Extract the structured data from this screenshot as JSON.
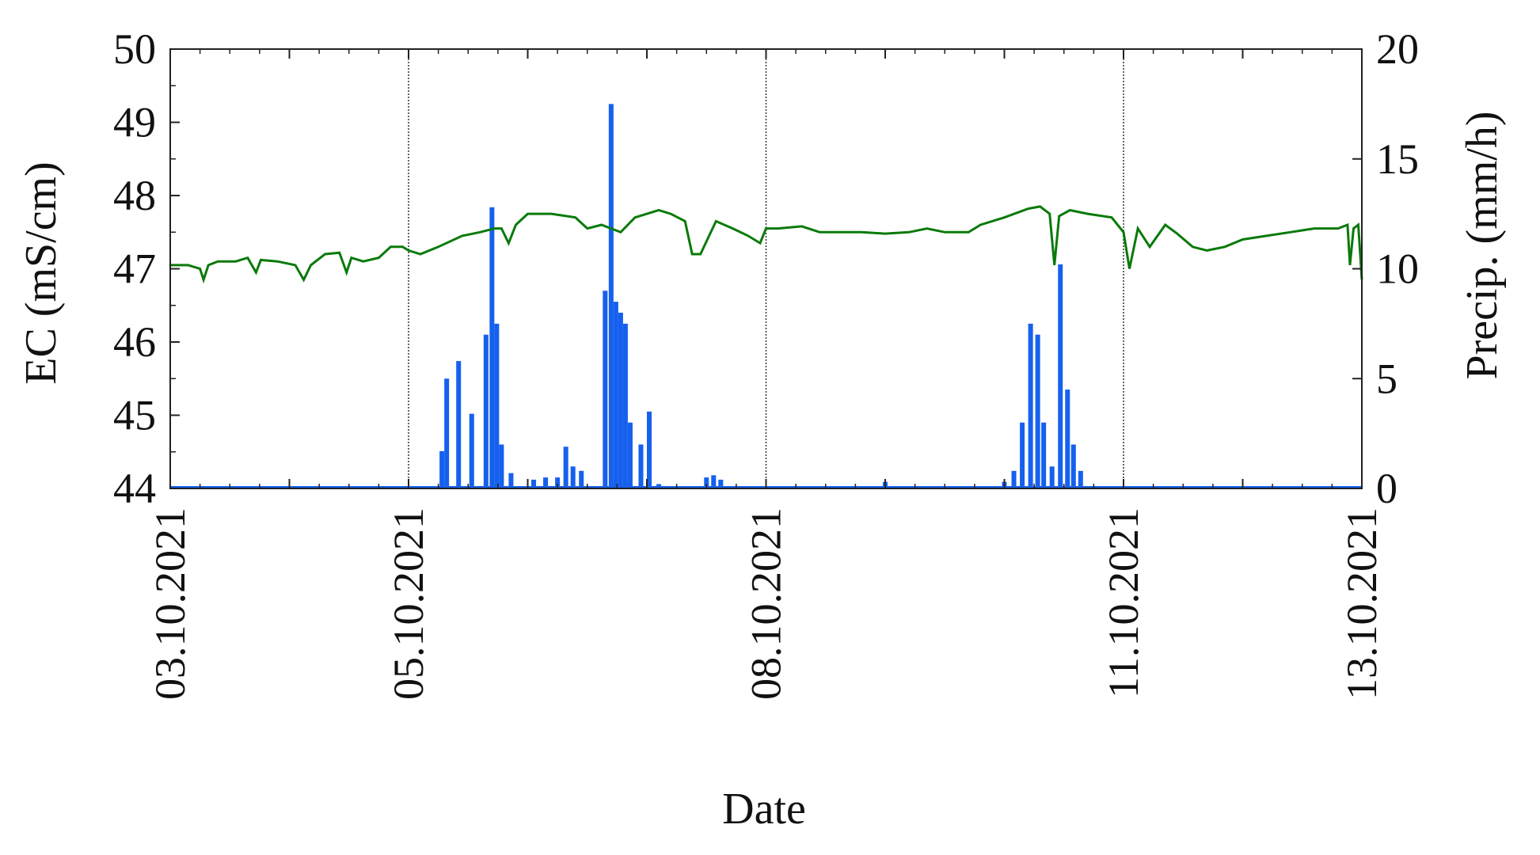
{
  "chart_data": {
    "type": "line",
    "xlabel": "Date",
    "ylabel_left": "EC (mS/cm)",
    "ylabel_right": "Precip. (mm/h)",
    "x_tick_labels": [
      "03.10.2021",
      "05.10.2021",
      "08.10.2021",
      "11.10.2021",
      "13.10.2021"
    ],
    "x_tick_positions_days": [
      0,
      2,
      5,
      8,
      10
    ],
    "x_range_days": [
      0,
      10
    ],
    "y_left_ticks": [
      "44",
      "45",
      "46",
      "47",
      "48",
      "49",
      "50"
    ],
    "y_left_range": [
      44,
      50
    ],
    "y_right_ticks": [
      "0",
      "5",
      "10",
      "15",
      "20"
    ],
    "y_right_range": [
      0,
      20
    ],
    "vertical_dividers_days": [
      2,
      5,
      8
    ],
    "colors": {
      "ec_line": "#0a7a0a",
      "precip_bars": "#1660ee",
      "axes": "#222222",
      "divider": "#333333"
    },
    "series": [
      {
        "axis": "left",
        "type": "line",
        "points": [
          [
            0.0,
            47.05
          ],
          [
            0.15,
            47.05
          ],
          [
            0.25,
            47.0
          ],
          [
            0.28,
            46.85
          ],
          [
            0.32,
            47.05
          ],
          [
            0.4,
            47.1
          ],
          [
            0.55,
            47.1
          ],
          [
            0.65,
            47.15
          ],
          [
            0.72,
            46.95
          ],
          [
            0.76,
            47.12
          ],
          [
            0.9,
            47.1
          ],
          [
            1.05,
            47.05
          ],
          [
            1.12,
            46.85
          ],
          [
            1.18,
            47.05
          ],
          [
            1.3,
            47.2
          ],
          [
            1.42,
            47.22
          ],
          [
            1.48,
            46.95
          ],
          [
            1.52,
            47.15
          ],
          [
            1.62,
            47.1
          ],
          [
            1.75,
            47.15
          ],
          [
            1.85,
            47.3
          ],
          [
            1.95,
            47.3
          ],
          [
            2.0,
            47.25
          ],
          [
            2.1,
            47.2
          ],
          [
            2.25,
            47.3
          ],
          [
            2.45,
            47.45
          ],
          [
            2.6,
            47.5
          ],
          [
            2.72,
            47.55
          ],
          [
            2.78,
            47.55
          ],
          [
            2.84,
            47.35
          ],
          [
            2.9,
            47.6
          ],
          [
            3.0,
            47.75
          ],
          [
            3.2,
            47.75
          ],
          [
            3.4,
            47.7
          ],
          [
            3.5,
            47.55
          ],
          [
            3.62,
            47.6
          ],
          [
            3.78,
            47.5
          ],
          [
            3.9,
            47.7
          ],
          [
            4.1,
            47.8
          ],
          [
            4.2,
            47.75
          ],
          [
            4.32,
            47.65
          ],
          [
            4.38,
            47.2
          ],
          [
            4.45,
            47.2
          ],
          [
            4.58,
            47.65
          ],
          [
            4.72,
            47.55
          ],
          [
            4.85,
            47.45
          ],
          [
            4.95,
            47.35
          ],
          [
            5.0,
            47.55
          ],
          [
            5.1,
            47.55
          ],
          [
            5.3,
            47.58
          ],
          [
            5.45,
            47.5
          ],
          [
            5.6,
            47.5
          ],
          [
            5.8,
            47.5
          ],
          [
            6.0,
            47.48
          ],
          [
            6.2,
            47.5
          ],
          [
            6.35,
            47.55
          ],
          [
            6.5,
            47.5
          ],
          [
            6.7,
            47.5
          ],
          [
            6.8,
            47.6
          ],
          [
            7.0,
            47.7
          ],
          [
            7.2,
            47.82
          ],
          [
            7.3,
            47.85
          ],
          [
            7.38,
            47.75
          ],
          [
            7.42,
            47.05
          ],
          [
            7.46,
            47.72
          ],
          [
            7.55,
            47.8
          ],
          [
            7.7,
            47.75
          ],
          [
            7.9,
            47.7
          ],
          [
            8.0,
            47.5
          ],
          [
            8.05,
            47.0
          ],
          [
            8.12,
            47.55
          ],
          [
            8.22,
            47.3
          ],
          [
            8.35,
            47.6
          ],
          [
            8.45,
            47.48
          ],
          [
            8.58,
            47.3
          ],
          [
            8.7,
            47.25
          ],
          [
            8.85,
            47.3
          ],
          [
            9.0,
            47.4
          ],
          [
            9.2,
            47.45
          ],
          [
            9.4,
            47.5
          ],
          [
            9.6,
            47.55
          ],
          [
            9.8,
            47.55
          ],
          [
            9.88,
            47.6
          ],
          [
            9.9,
            47.05
          ],
          [
            9.93,
            47.55
          ],
          [
            9.97,
            47.6
          ],
          [
            10.0,
            46.85
          ]
        ]
      },
      {
        "axis": "right",
        "type": "bar",
        "bar_width_days": 0.04,
        "bars": [
          [
            2.28,
            1.7
          ],
          [
            2.32,
            5.0
          ],
          [
            2.42,
            5.8
          ],
          [
            2.53,
            3.4
          ],
          [
            2.65,
            7.0
          ],
          [
            2.7,
            12.8
          ],
          [
            2.74,
            7.5
          ],
          [
            2.78,
            2.0
          ],
          [
            2.86,
            0.7
          ],
          [
            3.05,
            0.4
          ],
          [
            3.15,
            0.5
          ],
          [
            3.25,
            0.5
          ],
          [
            3.32,
            1.9
          ],
          [
            3.38,
            1.0
          ],
          [
            3.45,
            0.8
          ],
          [
            3.65,
            9.0
          ],
          [
            3.7,
            17.5
          ],
          [
            3.74,
            8.5
          ],
          [
            3.78,
            8.0
          ],
          [
            3.82,
            7.5
          ],
          [
            3.86,
            3.0
          ],
          [
            3.95,
            2.0
          ],
          [
            4.02,
            3.5
          ],
          [
            4.1,
            0.2
          ],
          [
            4.22,
            0.1
          ],
          [
            4.5,
            0.5
          ],
          [
            4.56,
            0.6
          ],
          [
            4.62,
            0.4
          ],
          [
            6.0,
            0.3
          ],
          [
            7.0,
            0.3
          ],
          [
            7.08,
            0.8
          ],
          [
            7.15,
            3.0
          ],
          [
            7.22,
            7.5
          ],
          [
            7.28,
            7.0
          ],
          [
            7.33,
            3.0
          ],
          [
            7.4,
            1.0
          ],
          [
            7.47,
            10.2
          ],
          [
            7.53,
            4.5
          ],
          [
            7.58,
            2.0
          ],
          [
            7.64,
            0.8
          ]
        ]
      }
    ]
  }
}
